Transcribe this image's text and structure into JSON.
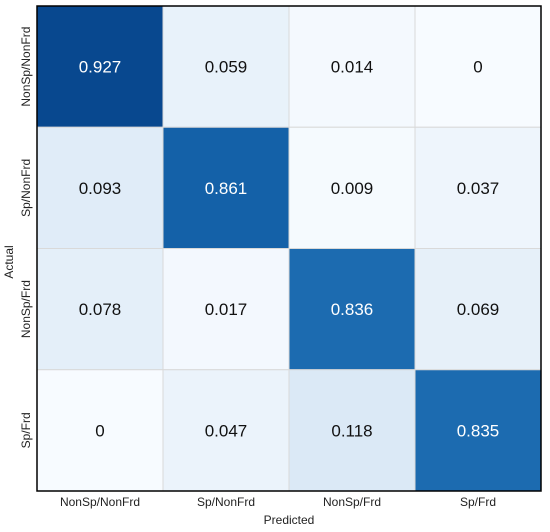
{
  "chart_data": {
    "type": "heatmap",
    "xlabel": "Predicted",
    "ylabel": "Actual",
    "x_categories": [
      "NonSp/NonFrd",
      "Sp/NonFrd",
      "NonSp/Frd",
      "Sp/Frd"
    ],
    "y_categories": [
      "NonSp/NonFrd",
      "Sp/NonFrd",
      "NonSp/Frd",
      "Sp/Frd"
    ],
    "cell_labels": [
      [
        "0.927",
        "0.059",
        "0.014",
        "0"
      ],
      [
        "0.093",
        "0.861",
        "0.009",
        "0.037"
      ],
      [
        "0.078",
        "0.017",
        "0.836",
        "0.069"
      ],
      [
        "0",
        "0.047",
        "0.118",
        "0.835"
      ]
    ],
    "values": [
      [
        0.927,
        0.059,
        0.014,
        0
      ],
      [
        0.093,
        0.861,
        0.009,
        0.037
      ],
      [
        0.078,
        0.017,
        0.836,
        0.069
      ],
      [
        0,
        0.047,
        0.118,
        0.835
      ]
    ],
    "value_range": [
      0,
      1
    ],
    "colormap": "Blues",
    "colors": {
      "low": "#f7fbff",
      "high": "#08306b",
      "grid": "#d9d9d9",
      "frame": "#000000"
    }
  }
}
